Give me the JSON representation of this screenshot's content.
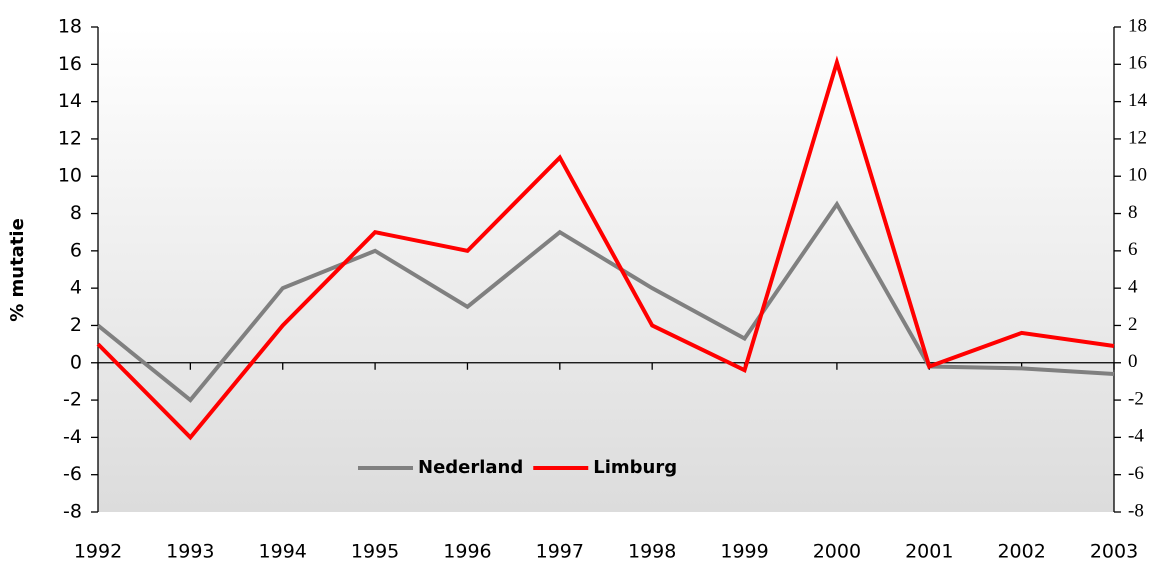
{
  "chart_data": {
    "type": "line",
    "y_label": "% mutatie",
    "categories": [
      "1992",
      "1993",
      "1994",
      "1995",
      "1996",
      "1997",
      "1998",
      "1999",
      "2000",
      "2001",
      "2002",
      "2003"
    ],
    "series": [
      {
        "name": "Nederland",
        "color": "#808080",
        "values": [
          2,
          -2,
          4,
          6,
          3,
          7,
          4,
          1.3,
          8.5,
          -0.2,
          -0.3,
          -0.6
        ]
      },
      {
        "name": "Limburg",
        "color": "#ff0000",
        "values": [
          1,
          -4,
          2,
          7,
          6,
          11,
          2,
          -0.4,
          16.1,
          -0.2,
          1.6,
          0.9
        ]
      }
    ],
    "ylim": [
      -8,
      18
    ],
    "yticks": [
      -8,
      -6,
      -4,
      -2,
      0,
      2,
      4,
      6,
      8,
      10,
      12,
      14,
      16,
      18
    ],
    "y2lim": [
      -8,
      18
    ],
    "y2ticks": [
      -8,
      -6,
      -4,
      -2,
      0,
      2,
      4,
      6,
      8,
      10,
      12,
      14,
      16,
      18
    ],
    "legend": "bottom-center"
  }
}
